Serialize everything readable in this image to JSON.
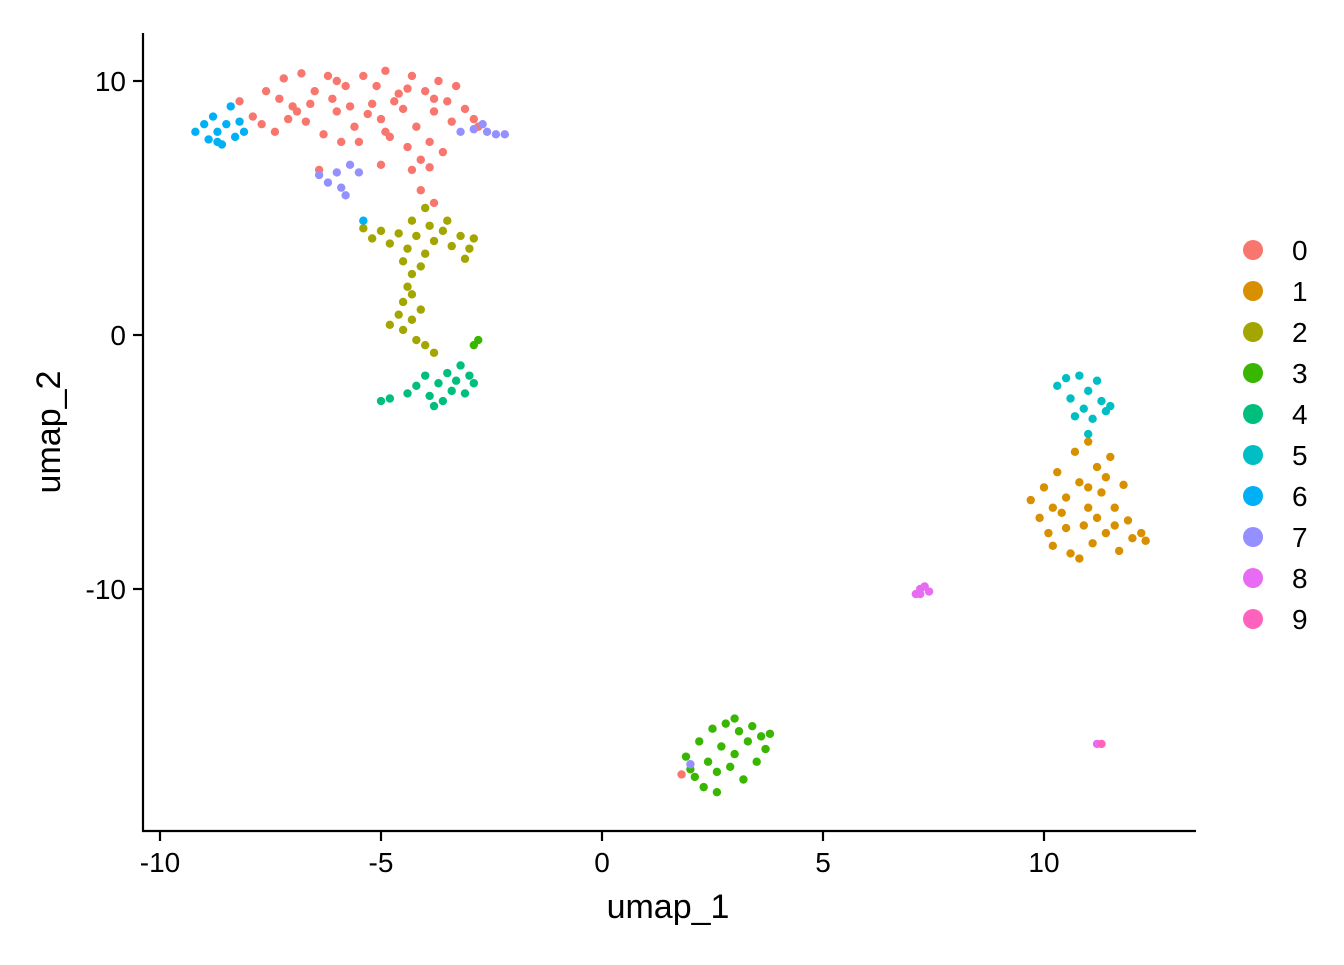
{
  "chart_data": {
    "type": "scatter",
    "title": "",
    "xlabel": "umap_1",
    "ylabel": "umap_2",
    "xlim": [
      -10.4,
      13.4
    ],
    "ylim": [
      -19.5,
      11.9
    ],
    "xticks": [
      -10,
      -5,
      0,
      5,
      10
    ],
    "yticks": [
      10,
      0,
      -10
    ],
    "xtick_labels": [
      "-10",
      "-5",
      "0",
      "5",
      "10"
    ],
    "ytick_labels": [
      "10",
      "0",
      "-10"
    ],
    "grid": false,
    "legend_placement": "right",
    "series": [
      {
        "name": "0",
        "color": "#F8766D",
        "points": [
          [
            -8.2,
            9.2
          ],
          [
            -7.9,
            8.6
          ],
          [
            -7.6,
            9.6
          ],
          [
            -7.4,
            8.0
          ],
          [
            -7.2,
            10.1
          ],
          [
            -7.0,
            9.0
          ],
          [
            -6.8,
            10.3
          ],
          [
            -6.7,
            8.4
          ],
          [
            -6.5,
            9.6
          ],
          [
            -6.3,
            7.9
          ],
          [
            -6.2,
            10.2
          ],
          [
            -6.0,
            8.8
          ],
          [
            -5.8,
            9.8
          ],
          [
            -5.6,
            8.2
          ],
          [
            -5.5,
            7.6
          ],
          [
            -5.4,
            10.2
          ],
          [
            -5.2,
            9.1
          ],
          [
            -5.0,
            8.5
          ],
          [
            -4.9,
            10.4
          ],
          [
            -4.8,
            7.8
          ],
          [
            -4.6,
            9.5
          ],
          [
            -4.5,
            8.9
          ],
          [
            -4.4,
            7.4
          ],
          [
            -4.3,
            10.2
          ],
          [
            -4.2,
            8.2
          ],
          [
            -4.1,
            6.9
          ],
          [
            -4.0,
            9.6
          ],
          [
            -3.9,
            7.6
          ],
          [
            -3.8,
            8.8
          ],
          [
            -3.7,
            10.0
          ],
          [
            -3.6,
            7.2
          ],
          [
            -3.5,
            9.2
          ],
          [
            -3.4,
            8.4
          ],
          [
            -3.3,
            9.8
          ],
          [
            -3.1,
            8.9
          ],
          [
            -2.9,
            8.5
          ],
          [
            -2.8,
            8.2
          ],
          [
            -6.9,
            8.8
          ],
          [
            -6.1,
            9.3
          ],
          [
            -5.3,
            8.7
          ],
          [
            -4.7,
            9.2
          ],
          [
            -7.7,
            8.3
          ],
          [
            -5.9,
            7.6
          ],
          [
            -4.3,
            6.5
          ],
          [
            -4.1,
            5.7
          ],
          [
            -3.8,
            5.2
          ],
          [
            -6.4,
            6.5
          ],
          [
            -5.0,
            6.7
          ],
          [
            -3.9,
            6.6
          ],
          [
            -7.3,
            9.3
          ],
          [
            -6.6,
            9.1
          ],
          [
            -5.7,
            9.0
          ],
          [
            -5.1,
            9.8
          ],
          [
            -4.4,
            9.7
          ],
          [
            -3.8,
            9.3
          ],
          [
            -7.1,
            8.5
          ],
          [
            -6.0,
            10.0
          ],
          [
            -4.9,
            8.0
          ],
          [
            1.8,
            -17.3
          ]
        ]
      },
      {
        "name": "1",
        "color": "#D89000",
        "points": [
          [
            9.7,
            -6.5
          ],
          [
            9.9,
            -7.2
          ],
          [
            10.0,
            -6.0
          ],
          [
            10.1,
            -7.8
          ],
          [
            10.2,
            -8.3
          ],
          [
            10.3,
            -5.4
          ],
          [
            10.4,
            -7.0
          ],
          [
            10.5,
            -6.4
          ],
          [
            10.6,
            -8.6
          ],
          [
            10.7,
            -4.6
          ],
          [
            10.8,
            -5.8
          ],
          [
            10.9,
            -7.5
          ],
          [
            11.0,
            -4.2
          ],
          [
            11.0,
            -6.8
          ],
          [
            11.1,
            -8.2
          ],
          [
            11.2,
            -5.2
          ],
          [
            11.3,
            -6.2
          ],
          [
            11.4,
            -7.8
          ],
          [
            11.5,
            -4.8
          ],
          [
            11.6,
            -6.8
          ],
          [
            11.7,
            -8.5
          ],
          [
            11.8,
            -5.9
          ],
          [
            11.9,
            -7.3
          ],
          [
            12.0,
            -8.0
          ],
          [
            12.2,
            -7.8
          ],
          [
            12.3,
            -8.1
          ],
          [
            10.5,
            -7.6
          ],
          [
            11.2,
            -7.2
          ],
          [
            10.8,
            -8.8
          ],
          [
            11.4,
            -5.6
          ],
          [
            10.2,
            -6.8
          ],
          [
            11.0,
            -6.0
          ],
          [
            11.6,
            -7.5
          ]
        ]
      },
      {
        "name": "2",
        "color": "#A3A500",
        "points": [
          [
            -5.4,
            4.2
          ],
          [
            -5.2,
            3.8
          ],
          [
            -5.0,
            4.1
          ],
          [
            -4.8,
            3.6
          ],
          [
            -4.6,
            4.0
          ],
          [
            -4.4,
            3.4
          ],
          [
            -4.2,
            3.9
          ],
          [
            -4.0,
            3.2
          ],
          [
            -3.8,
            3.7
          ],
          [
            -3.6,
            4.1
          ],
          [
            -3.4,
            3.5
          ],
          [
            -3.2,
            3.9
          ],
          [
            -3.0,
            3.4
          ],
          [
            -2.9,
            3.8
          ],
          [
            -3.1,
            3.0
          ],
          [
            -3.5,
            4.5
          ],
          [
            -4.3,
            4.5
          ],
          [
            -4.5,
            2.9
          ],
          [
            -4.3,
            2.4
          ],
          [
            -4.4,
            1.9
          ],
          [
            -4.5,
            1.3
          ],
          [
            -4.6,
            0.8
          ],
          [
            -4.8,
            0.4
          ],
          [
            -4.5,
            0.2
          ],
          [
            -4.3,
            0.6
          ],
          [
            -4.2,
            -0.2
          ],
          [
            -4.1,
            1.0
          ],
          [
            -4.0,
            -0.4
          ],
          [
            -3.8,
            -0.7
          ],
          [
            -4.3,
            1.6
          ],
          [
            -4.1,
            2.7
          ],
          [
            -4.0,
            5.0
          ],
          [
            -3.9,
            4.3
          ]
        ]
      },
      {
        "name": "3",
        "color": "#39B600",
        "points": [
          [
            1.9,
            -16.6
          ],
          [
            2.1,
            -17.4
          ],
          [
            2.2,
            -16.0
          ],
          [
            2.3,
            -17.8
          ],
          [
            2.4,
            -16.8
          ],
          [
            2.5,
            -15.5
          ],
          [
            2.6,
            -17.2
          ],
          [
            2.7,
            -16.2
          ],
          [
            2.8,
            -15.3
          ],
          [
            2.9,
            -17.0
          ],
          [
            3.0,
            -16.5
          ],
          [
            3.1,
            -15.6
          ],
          [
            3.2,
            -17.5
          ],
          [
            3.3,
            -16.0
          ],
          [
            3.4,
            -15.4
          ],
          [
            3.5,
            -16.8
          ],
          [
            3.6,
            -15.8
          ],
          [
            3.7,
            -16.3
          ],
          [
            3.8,
            -15.7
          ],
          [
            2.0,
            -17.1
          ],
          [
            2.6,
            -18.0
          ],
          [
            3.0,
            -15.1
          ],
          [
            -2.8,
            -0.2
          ],
          [
            -2.9,
            -0.4
          ]
        ]
      },
      {
        "name": "4",
        "color": "#00BF7D",
        "points": [
          [
            -4.2,
            -2.0
          ],
          [
            -4.0,
            -1.6
          ],
          [
            -3.9,
            -2.4
          ],
          [
            -3.7,
            -1.9
          ],
          [
            -3.6,
            -2.6
          ],
          [
            -3.5,
            -1.5
          ],
          [
            -3.4,
            -2.2
          ],
          [
            -3.3,
            -1.8
          ],
          [
            -3.1,
            -2.3
          ],
          [
            -3.0,
            -1.6
          ],
          [
            -2.9,
            -1.9
          ],
          [
            -3.2,
            -1.2
          ],
          [
            -3.8,
            -2.8
          ],
          [
            -4.4,
            -2.3
          ],
          [
            -4.8,
            -2.5
          ],
          [
            -5.0,
            -2.6
          ]
        ]
      },
      {
        "name": "5",
        "color": "#00BFC4",
        "points": [
          [
            10.3,
            -2.0
          ],
          [
            10.5,
            -1.7
          ],
          [
            10.6,
            -2.5
          ],
          [
            10.8,
            -1.6
          ],
          [
            10.9,
            -2.9
          ],
          [
            11.0,
            -2.2
          ],
          [
            11.1,
            -3.3
          ],
          [
            11.2,
            -1.8
          ],
          [
            11.3,
            -2.6
          ],
          [
            11.4,
            -3.0
          ],
          [
            11.5,
            -2.8
          ],
          [
            10.7,
            -3.2
          ],
          [
            11.0,
            -3.9
          ]
        ]
      },
      {
        "name": "6",
        "color": "#00B0F6",
        "points": [
          [
            -9.2,
            8.0
          ],
          [
            -9.0,
            8.3
          ],
          [
            -8.9,
            7.7
          ],
          [
            -8.8,
            8.6
          ],
          [
            -8.7,
            8.0
          ],
          [
            -8.6,
            7.5
          ],
          [
            -8.5,
            8.3
          ],
          [
            -8.4,
            9.0
          ],
          [
            -8.3,
            7.8
          ],
          [
            -8.2,
            8.4
          ],
          [
            -8.7,
            7.6
          ],
          [
            -8.1,
            8.0
          ],
          [
            -5.4,
            4.5
          ]
        ]
      },
      {
        "name": "7",
        "color": "#9590FF",
        "points": [
          [
            -2.9,
            8.1
          ],
          [
            -2.6,
            8.0
          ],
          [
            -2.4,
            7.9
          ],
          [
            -2.2,
            7.9
          ],
          [
            -2.7,
            8.3
          ],
          [
            -3.2,
            8.0
          ],
          [
            -6.4,
            6.3
          ],
          [
            -6.2,
            6.0
          ],
          [
            -6.0,
            6.4
          ],
          [
            -5.9,
            5.8
          ],
          [
            -5.7,
            6.7
          ],
          [
            -5.5,
            6.4
          ],
          [
            -5.8,
            5.5
          ],
          [
            2.0,
            -16.9
          ]
        ]
      },
      {
        "name": "8",
        "color": "#E76BF3",
        "points": [
          [
            7.1,
            -10.2
          ],
          [
            7.2,
            -10.0
          ],
          [
            7.3,
            -9.9
          ],
          [
            7.4,
            -10.1
          ],
          [
            7.2,
            -10.2
          ],
          [
            11.2,
            -16.1
          ]
        ]
      },
      {
        "name": "9",
        "color": "#FF62BC",
        "points": [
          [
            11.3,
            -16.1
          ]
        ]
      }
    ]
  }
}
